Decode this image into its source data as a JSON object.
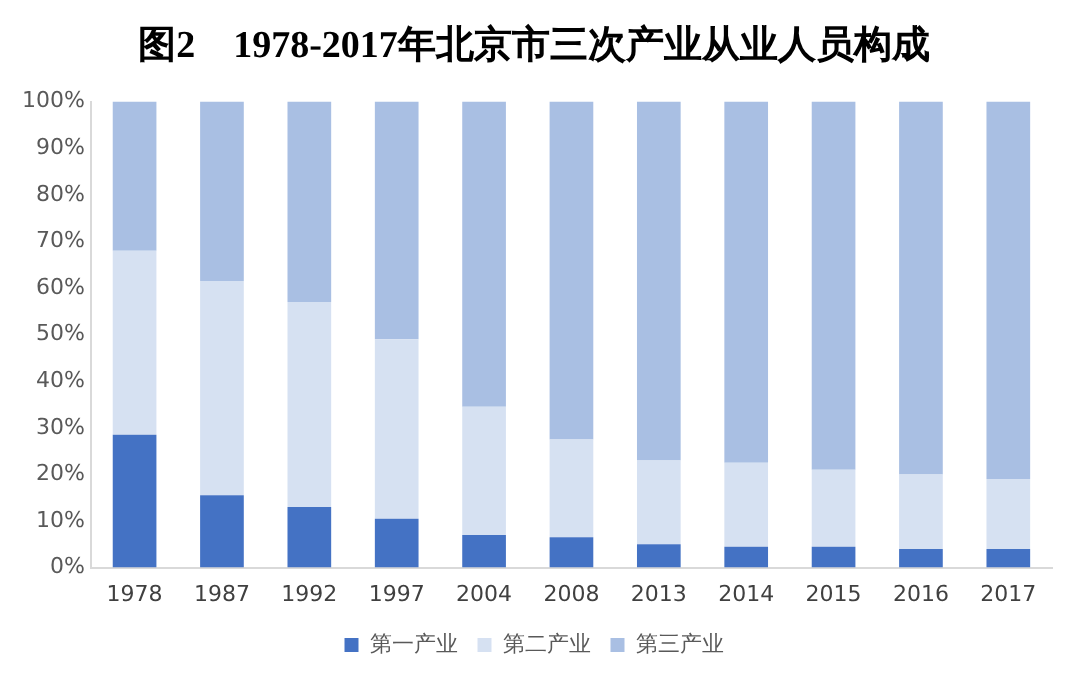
{
  "chart_data": {
    "type": "bar",
    "title": "图2    1978-2017年北京市三次产业从业人员构成",
    "stacked": true,
    "categories": [
      "1978",
      "1987",
      "1992",
      "1997",
      "2004",
      "2008",
      "2013",
      "2014",
      "2015",
      "2016",
      "2017"
    ],
    "series": [
      {
        "name": "第一产业",
        "color": "#4472c4",
        "values": [
          28.5,
          15.5,
          13,
          10.5,
          7,
          6.5,
          5,
          4.5,
          4.5,
          4,
          4
        ]
      },
      {
        "name": "第二产业",
        "color": "#d6e1f2",
        "values": [
          39.5,
          46,
          44,
          38.5,
          27.5,
          21,
          18,
          18,
          16.5,
          16,
          15
        ]
      },
      {
        "name": "第三产业",
        "color": "#a9bfe3",
        "values": [
          32,
          38.5,
          43,
          51,
          65.5,
          72.5,
          77,
          77.5,
          79,
          80,
          81
        ]
      }
    ],
    "ylim": [
      0,
      100
    ],
    "yticks": [
      {
        "value": 0,
        "label": "0%"
      },
      {
        "value": 10,
        "label": "10%"
      },
      {
        "value": 20,
        "label": "20%"
      },
      {
        "value": 30,
        "label": "30%"
      },
      {
        "value": 40,
        "label": "40%"
      },
      {
        "value": 50,
        "label": "50%"
      },
      {
        "value": 60,
        "label": "60%"
      },
      {
        "value": 70,
        "label": "70%"
      },
      {
        "value": 80,
        "label": "80%"
      },
      {
        "value": 90,
        "label": "90%"
      },
      {
        "value": 100,
        "label": "100%"
      }
    ],
    "grid": false,
    "legend": "bottom"
  }
}
